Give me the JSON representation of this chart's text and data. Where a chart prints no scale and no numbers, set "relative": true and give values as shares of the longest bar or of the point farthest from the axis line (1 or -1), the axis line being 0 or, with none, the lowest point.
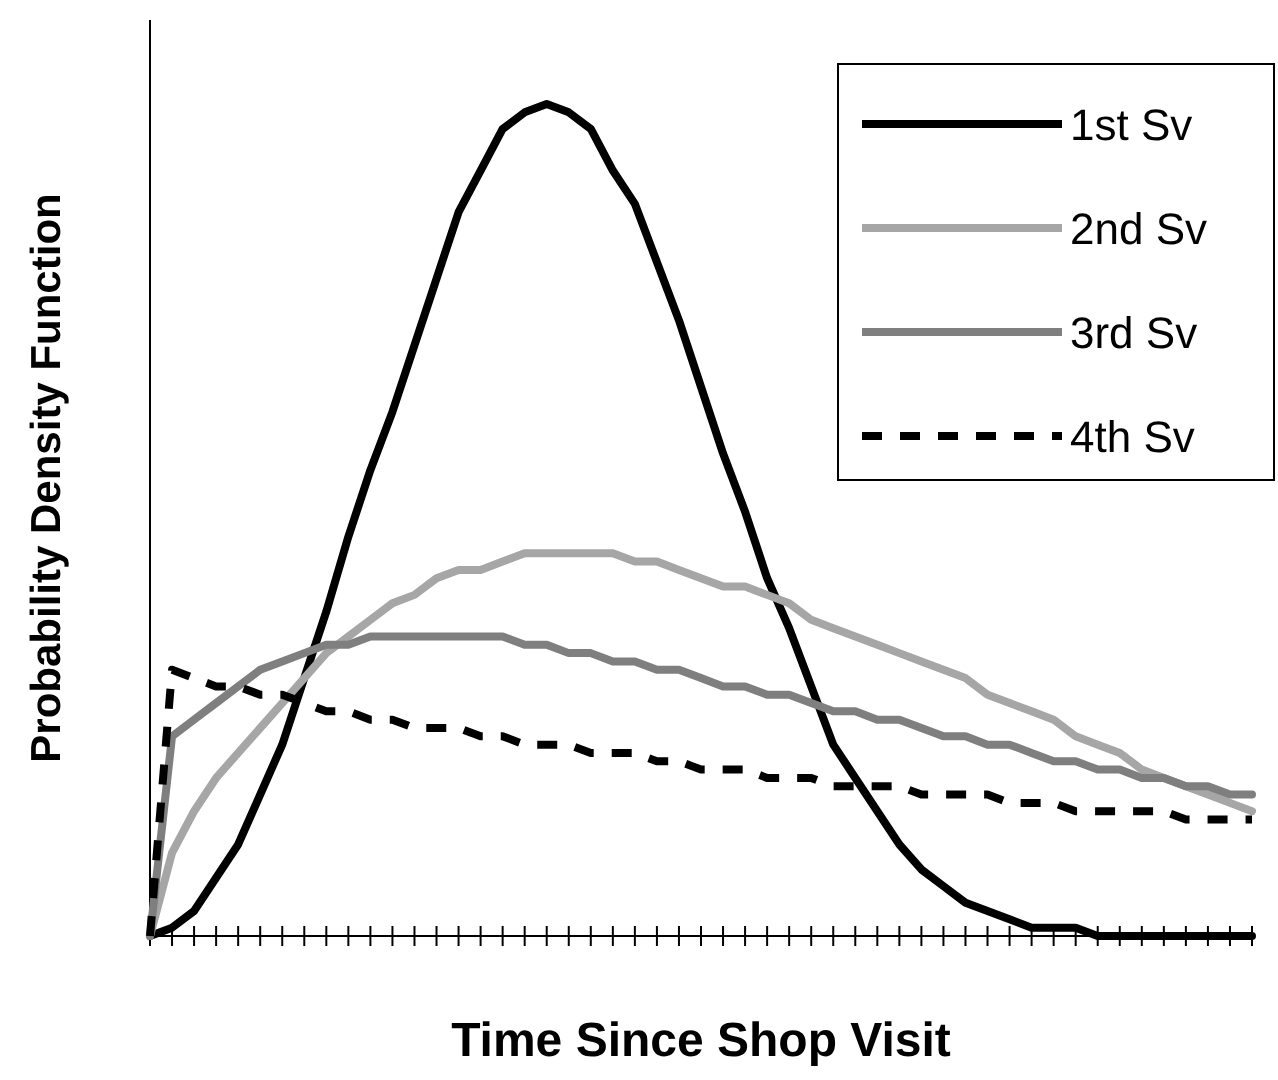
{
  "chart_data": {
    "type": "line",
    "relative": true,
    "xlabel": "Time Since Shop Visit",
    "ylabel": "Probability Density Function",
    "legend": "top right",
    "categories": [
      null,
      null,
      null,
      null,
      null,
      null,
      null,
      null,
      null,
      null,
      null,
      null,
      null,
      null,
      null,
      null,
      null,
      null,
      null,
      null,
      null,
      null,
      null,
      null,
      null,
      null,
      null,
      null,
      null,
      null,
      null,
      null,
      null,
      null,
      null,
      null,
      null,
      null,
      null,
      null,
      null,
      null,
      null,
      null,
      null,
      null,
      null,
      null,
      null,
      null,
      null
    ],
    "series": [
      {
        "name": "1st Sv",
        "color": "#000000",
        "line_style": "solid",
        "values": [
          0,
          0.01,
          0.03,
          0.07,
          0.11,
          0.17,
          0.23,
          0.31,
          0.39,
          0.48,
          0.56,
          0.63,
          0.71,
          0.79,
          0.87,
          0.92,
          0.97,
          0.99,
          1,
          0.99,
          0.97,
          0.92,
          0.88,
          0.81,
          0.74,
          0.66,
          0.58,
          0.51,
          0.43,
          0.37,
          0.3,
          0.23,
          0.19,
          0.15,
          0.11,
          0.08,
          0.06,
          0.04,
          0.03,
          0.02,
          0.01,
          0.01,
          0.01,
          0,
          0,
          0,
          0,
          0,
          0,
          0,
          0
        ]
      },
      {
        "name": "2nd Sv",
        "color": "#a6a6a6",
        "line_style": "solid",
        "values": [
          0,
          0.1,
          0.15,
          0.19,
          0.22,
          0.25,
          0.28,
          0.31,
          0.34,
          0.36,
          0.38,
          0.4,
          0.41,
          0.43,
          0.44,
          0.44,
          0.45,
          0.46,
          0.46,
          0.46,
          0.46,
          0.46,
          0.45,
          0.45,
          0.44,
          0.43,
          0.42,
          0.42,
          0.41,
          0.4,
          0.38,
          0.37,
          0.36,
          0.35,
          0.34,
          0.33,
          0.32,
          0.31,
          0.29,
          0.28,
          0.27,
          0.26,
          0.24,
          0.23,
          0.22,
          0.2,
          0.19,
          0.18,
          0.17,
          0.16,
          0.15
        ]
      },
      {
        "name": "3rd Sv",
        "color": "#7f7f7f",
        "line_style": "solid",
        "values": [
          0,
          0.24,
          0.26,
          0.28,
          0.3,
          0.32,
          0.33,
          0.34,
          0.35,
          0.35,
          0.36,
          0.36,
          0.36,
          0.36,
          0.36,
          0.36,
          0.36,
          0.35,
          0.35,
          0.34,
          0.34,
          0.33,
          0.33,
          0.32,
          0.32,
          0.31,
          0.3,
          0.3,
          0.29,
          0.29,
          0.28,
          0.27,
          0.27,
          0.26,
          0.26,
          0.25,
          0.24,
          0.24,
          0.23,
          0.23,
          0.22,
          0.21,
          0.21,
          0.2,
          0.2,
          0.19,
          0.19,
          0.18,
          0.18,
          0.17,
          0.17
        ]
      },
      {
        "name": "4th Sv",
        "color": "#000000",
        "line_style": "dashed",
        "values": [
          0,
          0.32,
          0.31,
          0.3,
          0.3,
          0.29,
          0.29,
          0.28,
          0.27,
          0.27,
          0.26,
          0.26,
          0.25,
          0.25,
          0.25,
          0.24,
          0.24,
          0.23,
          0.23,
          0.23,
          0.22,
          0.22,
          0.22,
          0.21,
          0.21,
          0.2,
          0.2,
          0.2,
          0.19,
          0.19,
          0.19,
          0.18,
          0.18,
          0.18,
          0.18,
          0.17,
          0.17,
          0.17,
          0.17,
          0.16,
          0.16,
          0.16,
          0.15,
          0.15,
          0.15,
          0.15,
          0.15,
          0.14,
          0.14,
          0.14,
          0.14
        ]
      }
    ]
  }
}
